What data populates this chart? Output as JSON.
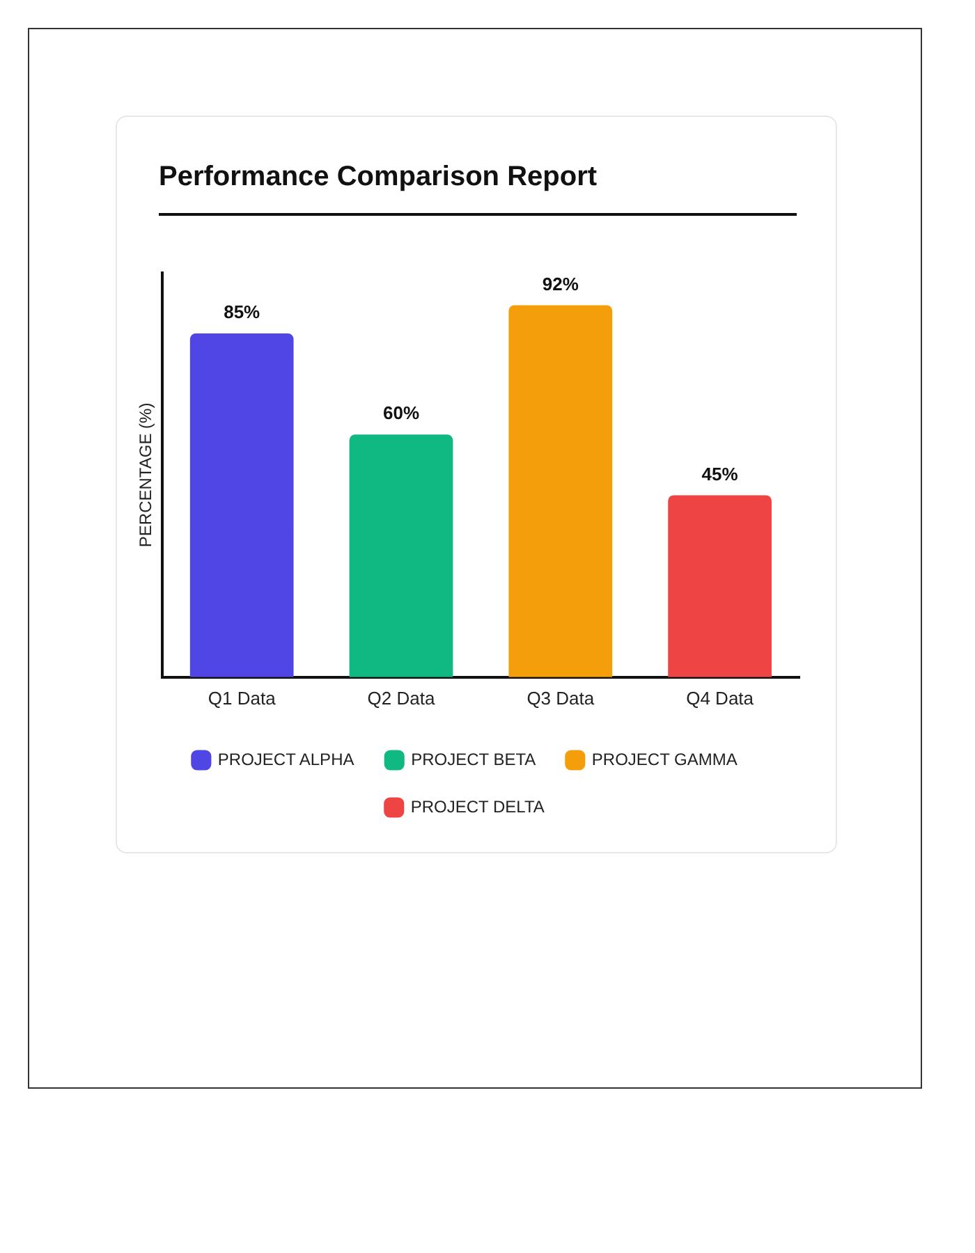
{
  "chart_data": {
    "type": "bar",
    "title": "Performance Comparison Report",
    "ylabel": "PERCENTAGE (%)",
    "categories": [
      "Q1 Data",
      "Q2 Data",
      "Q3 Data",
      "Q4 Data"
    ],
    "series": [
      {
        "name": "PROJECT ALPHA",
        "color": "#4f46e5",
        "values": [
          85,
          null,
          null,
          null
        ],
        "value_labels": [
          "85%",
          null,
          null,
          null
        ]
      },
      {
        "name": "PROJECT BETA",
        "color": "#10b981",
        "values": [
          null,
          60,
          null,
          null
        ],
        "value_labels": [
          null,
          "60%",
          null,
          null
        ]
      },
      {
        "name": "PROJECT GAMMA",
        "color": "#f59e0b",
        "values": [
          null,
          null,
          92,
          null
        ],
        "value_labels": [
          null,
          null,
          "92%",
          null
        ]
      },
      {
        "name": "PROJECT DELTA",
        "color": "#ef4444",
        "values": [
          null,
          null,
          null,
          45
        ],
        "value_labels": [
          null,
          null,
          null,
          "45%"
        ]
      }
    ],
    "tick_labels": "x",
    "grid": false,
    "legend": "bottom"
  }
}
